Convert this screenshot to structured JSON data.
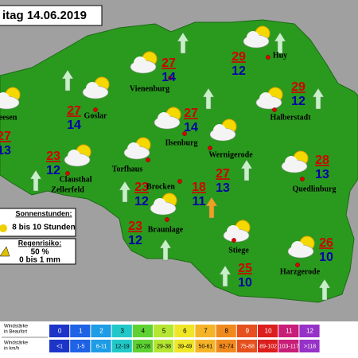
{
  "title": "itag 14.06.2019",
  "cities": [
    {
      "names": [
        "Huy"
      ],
      "max": 29,
      "min": 12
    },
    {
      "names": [
        "Vienenburg"
      ],
      "max": 27,
      "min": 14
    },
    {
      "names": [
        "Goslar"
      ],
      "max": 27,
      "min": 14
    },
    {
      "names": [
        "eesen"
      ],
      "max": 27,
      "min": 13
    },
    {
      "names": [
        "Halberstadt"
      ],
      "max": 29,
      "min": 12
    },
    {
      "names": [
        "Ilsenburg"
      ],
      "max": 27,
      "min": 14
    },
    {
      "names": [
        "Wernigerode"
      ],
      "max": 27,
      "min": 13
    },
    {
      "names": [
        "Clausthal",
        "Zellerfeld"
      ],
      "max": 23,
      "min": 12
    },
    {
      "names": [
        "Torfhaus"
      ],
      "max": 23,
      "min": 12
    },
    {
      "names": [
        "Brocken"
      ],
      "max": 18,
      "min": 11
    },
    {
      "names": [
        "Quedlinburg"
      ],
      "max": 28,
      "min": 13
    },
    {
      "names": [
        "Braunlage"
      ],
      "max": 23,
      "min": 12
    },
    {
      "names": [
        "Stiege"
      ],
      "max": 25,
      "min": 10
    },
    {
      "names": [
        "Harzgerode"
      ],
      "max": 26,
      "min": 10
    }
  ],
  "legend": {
    "sun_title": "Sonnenstunden:",
    "sun_value": "8 bis 10 Stunden",
    "rain_title": "Regenrisiko:",
    "rain_percent": "50 %",
    "rain_amount": "0 bis 1 mm"
  },
  "scale": {
    "beaufort_label": [
      "Windstärke",
      "in Beaufort"
    ],
    "kmh_label": [
      "Windstärke",
      "in km/h"
    ],
    "beaufort": [
      0,
      1,
      2,
      3,
      4,
      5,
      6,
      7,
      8,
      9,
      10,
      11,
      12
    ],
    "kmh": [
      "<1",
      "1-5",
      "6-11",
      "12-19",
      "20-28",
      "29-38",
      "39-49",
      "50-61",
      "62-74",
      "75-88",
      "89-102",
      "103-117",
      ">118"
    ],
    "colors": [
      "#1c34c8",
      "#1e62e6",
      "#1e9ce6",
      "#22c8c8",
      "#5ed232",
      "#b4e632",
      "#f0e628",
      "#f5b428",
      "#f08a1e",
      "#e6501e",
      "#dc1e1e",
      "#c81e78",
      "#9632c8"
    ]
  }
}
